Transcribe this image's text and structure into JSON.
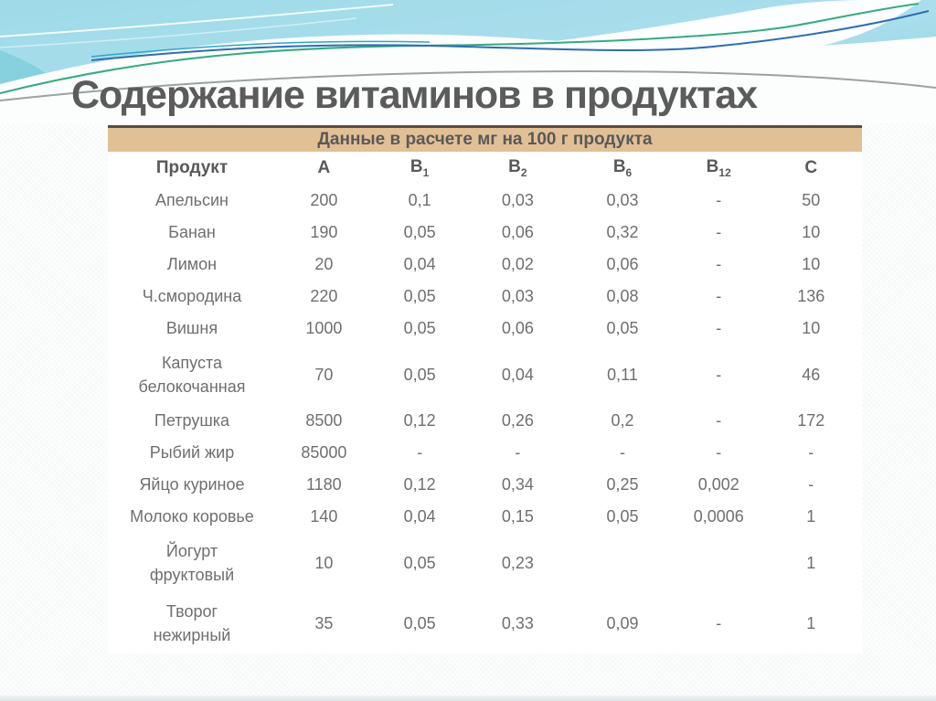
{
  "slide": {
    "title": "Содержание витаминов в продуктах"
  },
  "table": {
    "banner": "Данные в расчете мг на 100 г продукта",
    "columns": [
      {
        "label": "Продукт",
        "sub": ""
      },
      {
        "label": "A",
        "sub": ""
      },
      {
        "label": "B",
        "sub": "1"
      },
      {
        "label": "B",
        "sub": "2"
      },
      {
        "label": "B",
        "sub": "6"
      },
      {
        "label": "B",
        "sub": "12"
      },
      {
        "label": "C",
        "sub": ""
      }
    ],
    "rows": [
      {
        "product": "Апельсин",
        "twoline": false,
        "values": [
          "200",
          "0,1",
          "0,03",
          "0,03",
          "-",
          "50"
        ]
      },
      {
        "product": "Банан",
        "twoline": false,
        "values": [
          "190",
          "0,05",
          "0,06",
          "0,32",
          "-",
          "10"
        ]
      },
      {
        "product": "Лимон",
        "twoline": false,
        "values": [
          "20",
          "0,04",
          "0,02",
          "0,06",
          "-",
          "10"
        ]
      },
      {
        "product": "Ч.смородина",
        "twoline": false,
        "values": [
          "220",
          "0,05",
          "0,03",
          "0,08",
          "-",
          "136"
        ]
      },
      {
        "product": "Вишня",
        "twoline": false,
        "values": [
          "1000",
          "0,05",
          "0,06",
          "0,05",
          "-",
          "10"
        ]
      },
      {
        "product": "Капуста белокочанная",
        "twoline": true,
        "values": [
          "70",
          "0,05",
          "0,04",
          "0,11",
          "-",
          "46"
        ]
      },
      {
        "product": "Петрушка",
        "twoline": false,
        "values": [
          "8500",
          "0,12",
          "0,26",
          "0,2",
          "-",
          "172"
        ]
      },
      {
        "product": "Рыбий жир",
        "twoline": false,
        "values": [
          "85000",
          "-",
          "-",
          "-",
          "-",
          "-"
        ]
      },
      {
        "product": "Яйцо куриное",
        "twoline": false,
        "values": [
          "1180",
          "0,12",
          "0,34",
          "0,25",
          "0,002",
          "-"
        ]
      },
      {
        "product": "Молоко коровье",
        "twoline": false,
        "values": [
          "140",
          "0,04",
          "0,15",
          "0,05",
          "0,0006",
          "1"
        ]
      },
      {
        "product": "Йогурт фруктовый",
        "twoline": true,
        "values": [
          "10",
          "0,05",
          "0,23",
          "",
          "",
          "1"
        ]
      },
      {
        "product": "Творог нежирный",
        "twoline": true,
        "values": [
          "35",
          "0,05",
          "0,33",
          "0,09",
          "-",
          "1"
        ]
      }
    ],
    "column_widths_pct": [
      22.3,
      12.7,
      12.7,
      13.3,
      14.5,
      11.0,
      13.5
    ]
  },
  "colors": {
    "banner_bg": "#e2c095",
    "banner_top_line": "#564d42",
    "title_text": "#5b5b5b",
    "body_text": "#6f6f6f",
    "header_text": "#595959",
    "wave_blue_light": "#bde4f0",
    "wave_blue": "#9ed8e8",
    "wave_teal_line": "#35ab7e",
    "wave_darkblue_line": "#2e6db4",
    "wave_grey_line": "#9aa2a5"
  }
}
